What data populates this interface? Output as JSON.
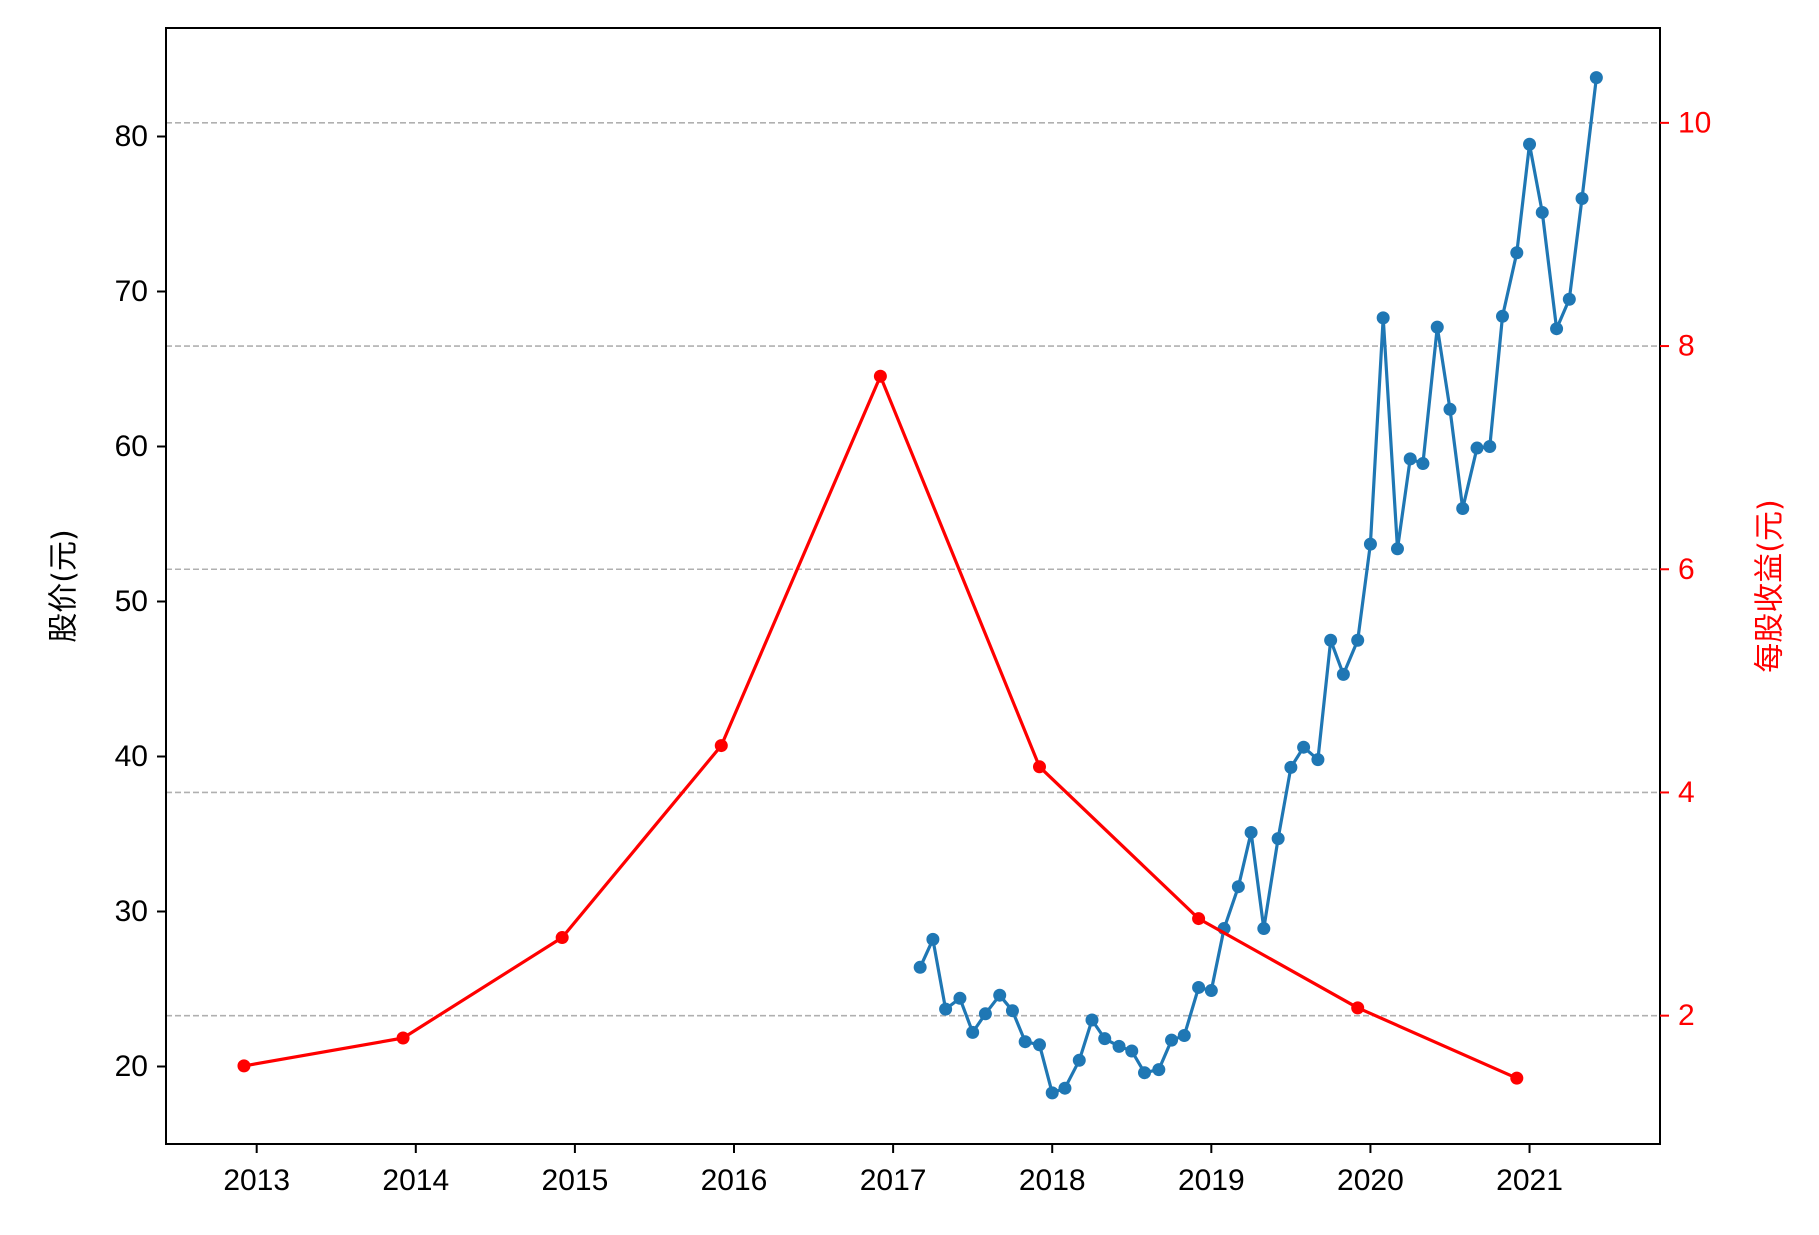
{
  "chart_data": {
    "type": "line",
    "title": "",
    "xlabel": "",
    "ylabel_left": "股价(元)",
    "ylabel_right": "每股收益(元)",
    "xlim": [
      2012.43,
      2021.82
    ],
    "ylim_left": [
      15,
      87
    ],
    "ylim_right": [
      0.85,
      10.85
    ],
    "x_ticks": [
      "2013",
      "2014",
      "2015",
      "2016",
      "2017",
      "2018",
      "2019",
      "2020",
      "2021"
    ],
    "y_left_ticks": [
      "20",
      "30",
      "40",
      "50",
      "60",
      "70",
      "80"
    ],
    "y_right_ticks": [
      "2",
      "4",
      "6",
      "8",
      "10"
    ],
    "grid": "horizontal dashed at right-axis ticks",
    "colors": {
      "price": "#1f77b4",
      "eps": "#ff0000",
      "right_axis": "#ff0000",
      "grid": "#b0b0b0"
    },
    "series": [
      {
        "axis": "left",
        "color": "#1f77b4",
        "x": [
          2017.17,
          2017.25,
          2017.33,
          2017.42,
          2017.5,
          2017.58,
          2017.67,
          2017.75,
          2017.83,
          2017.92,
          2018.0,
          2018.08,
          2018.17,
          2018.25,
          2018.33,
          2018.42,
          2018.5,
          2018.58,
          2018.67,
          2018.75,
          2018.83,
          2018.92,
          2019.0,
          2019.08,
          2019.17,
          2019.25,
          2019.33,
          2019.42,
          2019.5,
          2019.58,
          2019.67,
          2019.75,
          2019.83,
          2019.92,
          2020.0,
          2020.08,
          2020.17,
          2020.25,
          2020.33,
          2020.42,
          2020.5,
          2020.58,
          2020.67,
          2020.75,
          2020.83,
          2020.92,
          2021.0,
          2021.08,
          2021.17,
          2021.25,
          2021.33,
          2021.42
        ],
        "values": [
          26.4,
          28.2,
          23.7,
          24.4,
          22.2,
          23.4,
          24.6,
          23.6,
          21.6,
          21.4,
          18.3,
          18.6,
          20.4,
          23.0,
          21.8,
          21.3,
          21.0,
          19.6,
          19.8,
          21.7,
          22.0,
          25.1,
          24.9,
          28.9,
          31.6,
          35.1,
          28.9,
          34.7,
          39.3,
          40.6,
          39.8,
          47.5,
          45.3,
          47.5,
          53.7,
          68.3,
          53.4,
          59.2,
          58.9,
          67.7,
          62.4,
          56.0,
          59.9,
          60.0,
          68.4,
          72.5,
          79.5,
          75.1,
          67.6,
          69.5,
          76.0,
          83.8
        ]
      },
      {
        "axis": "right",
        "color": "#ff0000",
        "x": [
          2012.92,
          2013.92,
          2014.92,
          2015.92,
          2016.92,
          2017.92,
          2018.92,
          2019.92,
          2020.92
        ],
        "values": [
          1.55,
          1.8,
          2.7,
          4.42,
          7.73,
          4.23,
          2.87,
          2.07,
          1.44
        ]
      }
    ]
  }
}
